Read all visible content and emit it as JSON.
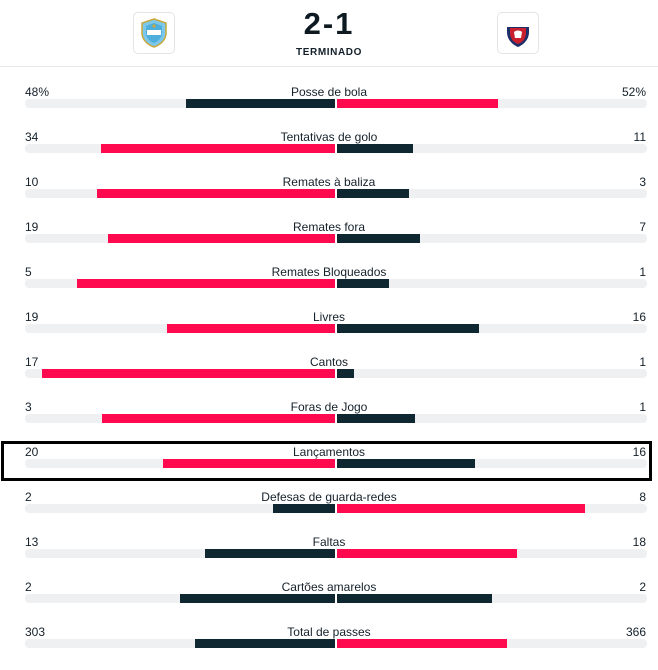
{
  "match": {
    "score": "2-1",
    "status": "TERMINADO"
  },
  "colors": {
    "red": "#ff0a4f",
    "dark": "#0f2730",
    "track": "#eef0f2"
  },
  "stats": [
    {
      "label": "Posse de bola",
      "home": "48%",
      "away": "52%",
      "home_val": 48,
      "away_val": 52,
      "home_color": "dark",
      "away_color": "red"
    },
    {
      "label": "Tentativas de golo",
      "home": "34",
      "away": "11",
      "home_val": 34,
      "away_val": 11,
      "home_color": "red",
      "away_color": "dark"
    },
    {
      "label": "Remates à baliza",
      "home": "10",
      "away": "3",
      "home_val": 10,
      "away_val": 3,
      "home_color": "red",
      "away_color": "dark"
    },
    {
      "label": "Remates fora",
      "home": "19",
      "away": "7",
      "home_val": 19,
      "away_val": 7,
      "home_color": "red",
      "away_color": "dark"
    },
    {
      "label": "Remates Bloqueados",
      "home": "5",
      "away": "1",
      "home_val": 5,
      "away_val": 1,
      "home_color": "red",
      "away_color": "dark"
    },
    {
      "label": "Livres",
      "home": "19",
      "away": "16",
      "home_val": 19,
      "away_val": 16,
      "home_color": "red",
      "away_color": "dark"
    },
    {
      "label": "Cantos",
      "home": "17",
      "away": "1",
      "home_val": 17,
      "away_val": 1,
      "home_color": "red",
      "away_color": "dark"
    },
    {
      "label": "Foras de Jogo",
      "home": "3",
      "away": "1",
      "home_val": 3,
      "away_val": 1,
      "home_color": "red",
      "away_color": "dark"
    },
    {
      "label": "Lançamentos",
      "home": "20",
      "away": "16",
      "home_val": 20,
      "away_val": 16,
      "home_color": "red",
      "away_color": "dark"
    },
    {
      "label": "Defesas de guarda-redes",
      "home": "2",
      "away": "8",
      "home_val": 2,
      "away_val": 8,
      "home_color": "dark",
      "away_color": "red"
    },
    {
      "label": "Faltas",
      "home": "13",
      "away": "18",
      "home_val": 13,
      "away_val": 18,
      "home_color": "dark",
      "away_color": "red"
    },
    {
      "label": "Cartões amarelos",
      "home": "2",
      "away": "2",
      "home_val": 2,
      "away_val": 2,
      "home_color": "dark",
      "away_color": "dark"
    },
    {
      "label": "Total de passes",
      "home": "303",
      "away": "366",
      "home_val": 303,
      "away_val": 366,
      "home_color": "dark",
      "away_color": "red"
    }
  ]
}
